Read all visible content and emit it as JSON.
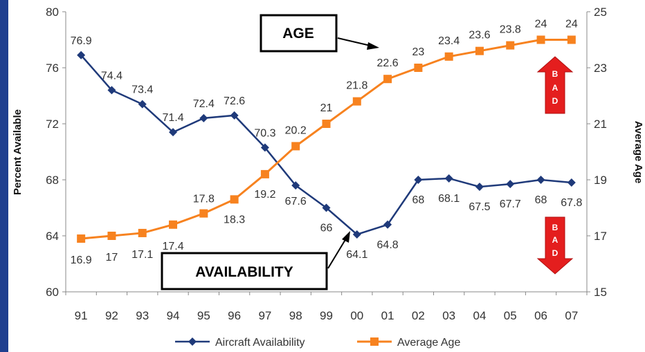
{
  "chart_data": {
    "type": "line",
    "categories": [
      "91",
      "92",
      "93",
      "94",
      "95",
      "96",
      "97",
      "98",
      "99",
      "00",
      "01",
      "02",
      "03",
      "04",
      "05",
      "06",
      "07"
    ],
    "series": [
      {
        "name": "Aircraft Availability",
        "axis": "left",
        "color": "#1f3a7a",
        "marker": "diamond",
        "values": [
          76.9,
          74.4,
          73.4,
          71.4,
          72.4,
          72.6,
          70.3,
          67.6,
          66,
          64.1,
          64.8,
          68,
          68.1,
          67.5,
          67.7,
          68,
          67.8
        ],
        "labels": [
          "76.9",
          "74.4",
          "73.4",
          "71.4",
          "72.4",
          "72.6",
          "70.3",
          "67.6",
          "66",
          "64.1",
          "64.8",
          "68",
          "68.1",
          "67.5",
          "67.7",
          "68",
          "67.8"
        ]
      },
      {
        "name": "Average Age",
        "axis": "right",
        "color": "#f7821f",
        "marker": "square",
        "values": [
          16.9,
          17,
          17.1,
          17.4,
          17.8,
          18.3,
          19.2,
          20.2,
          21,
          21.8,
          22.6,
          23,
          23.4,
          23.6,
          23.8,
          24,
          24
        ],
        "labels": [
          "16.9",
          "17",
          "17.1",
          "17.4",
          "17.8",
          "18.3",
          "19.2",
          "20.2",
          "21",
          "21.8",
          "22.6",
          "23",
          "23.4",
          "23.6",
          "23.8",
          "24",
          "24"
        ]
      }
    ],
    "ylabel_left": "Percent Available",
    "ylabel_right": "Average Age",
    "ylim_left": [
      60,
      80
    ],
    "yticks_left": [
      "60",
      "64",
      "68",
      "72",
      "76",
      "80"
    ],
    "ylim_right": [
      15,
      25
    ],
    "yticks_right": [
      "15",
      "17",
      "19",
      "21",
      "23",
      "25"
    ],
    "grid": false,
    "legend_position": "bottom",
    "annotations": {
      "age_callout": "AGE",
      "availability_callout": "AVAILABILITY",
      "bad_up": [
        "B",
        "A",
        "D"
      ],
      "bad_down": [
        "B",
        "A",
        "D"
      ],
      "bad_color": "#e41e1e"
    }
  }
}
